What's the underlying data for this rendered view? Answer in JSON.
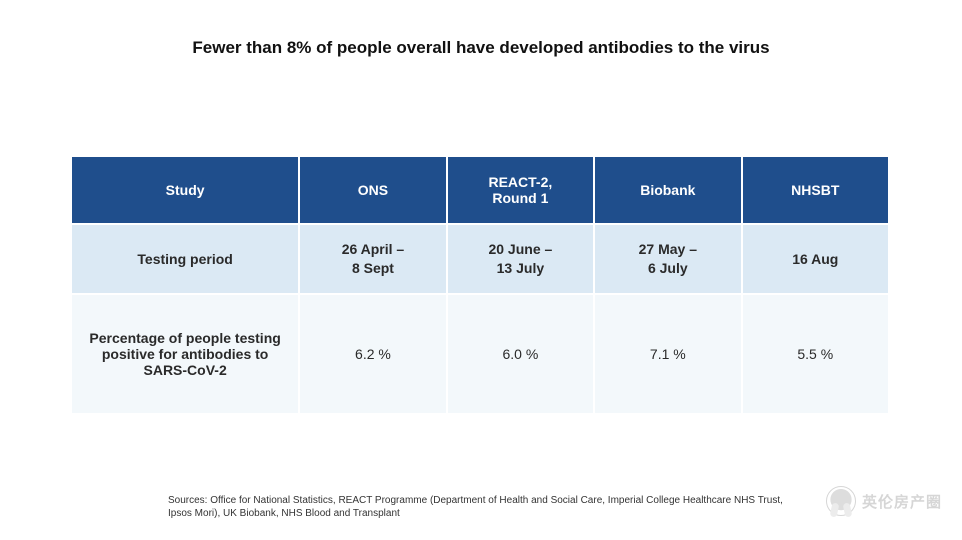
{
  "title": "Fewer than 8% of people overall have developed antibodies to the virus",
  "table": {
    "columns": [
      "Study",
      "ONS",
      "REACT-2,\nRound 1",
      "Biobank",
      "NHSBT"
    ],
    "rows": [
      {
        "label": "Testing period",
        "cells": [
          "26 April –\n8 Sept",
          "20 June –\n13 July",
          "27 May –\n6 July",
          "16 Aug"
        ]
      },
      {
        "label": "Percentage of people testing positive for antibodies to SARS-CoV-2",
        "cells": [
          "6.2 %",
          "6.0 %",
          "7.1 %",
          "5.5 %"
        ]
      }
    ],
    "header_bg": "#1f4e8c",
    "header_fg": "#ffffff",
    "period_row_bg": "#dbe9f4",
    "data_row_bg": "#f3f8fb",
    "border_spacing": 2,
    "col_widths_pct": [
      28,
      18,
      18,
      18,
      18
    ],
    "font_size_pt": 14,
    "title_font_size_pt": 17
  },
  "sources": "Sources: Office for National Statistics, REACT Programme (Department of Health and Social Care, Imperial College Healthcare NHS Trust, Ipsos Mori), UK Biobank, NHS Blood and Transplant",
  "watermark": "英伦房产圈",
  "background_color": "#ffffff"
}
